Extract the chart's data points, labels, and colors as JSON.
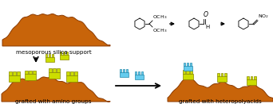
{
  "background_color": "#ffffff",
  "silica_color": "#c8640a",
  "silica_edge": "#8b3a00",
  "amino_color": "#ccdd00",
  "amino_edge": "#888800",
  "hetero_color": "#66ccee",
  "hetero_edge": "#2288aa",
  "text_color": "#000000",
  "label_meso": "mesoporous silica support",
  "label_amino": "grafted with amino groups",
  "label_hetero": "grafted with heteropolyacids",
  "label_fontsize": 5.2,
  "fig_width": 3.42,
  "fig_height": 1.31,
  "dpi": 100
}
